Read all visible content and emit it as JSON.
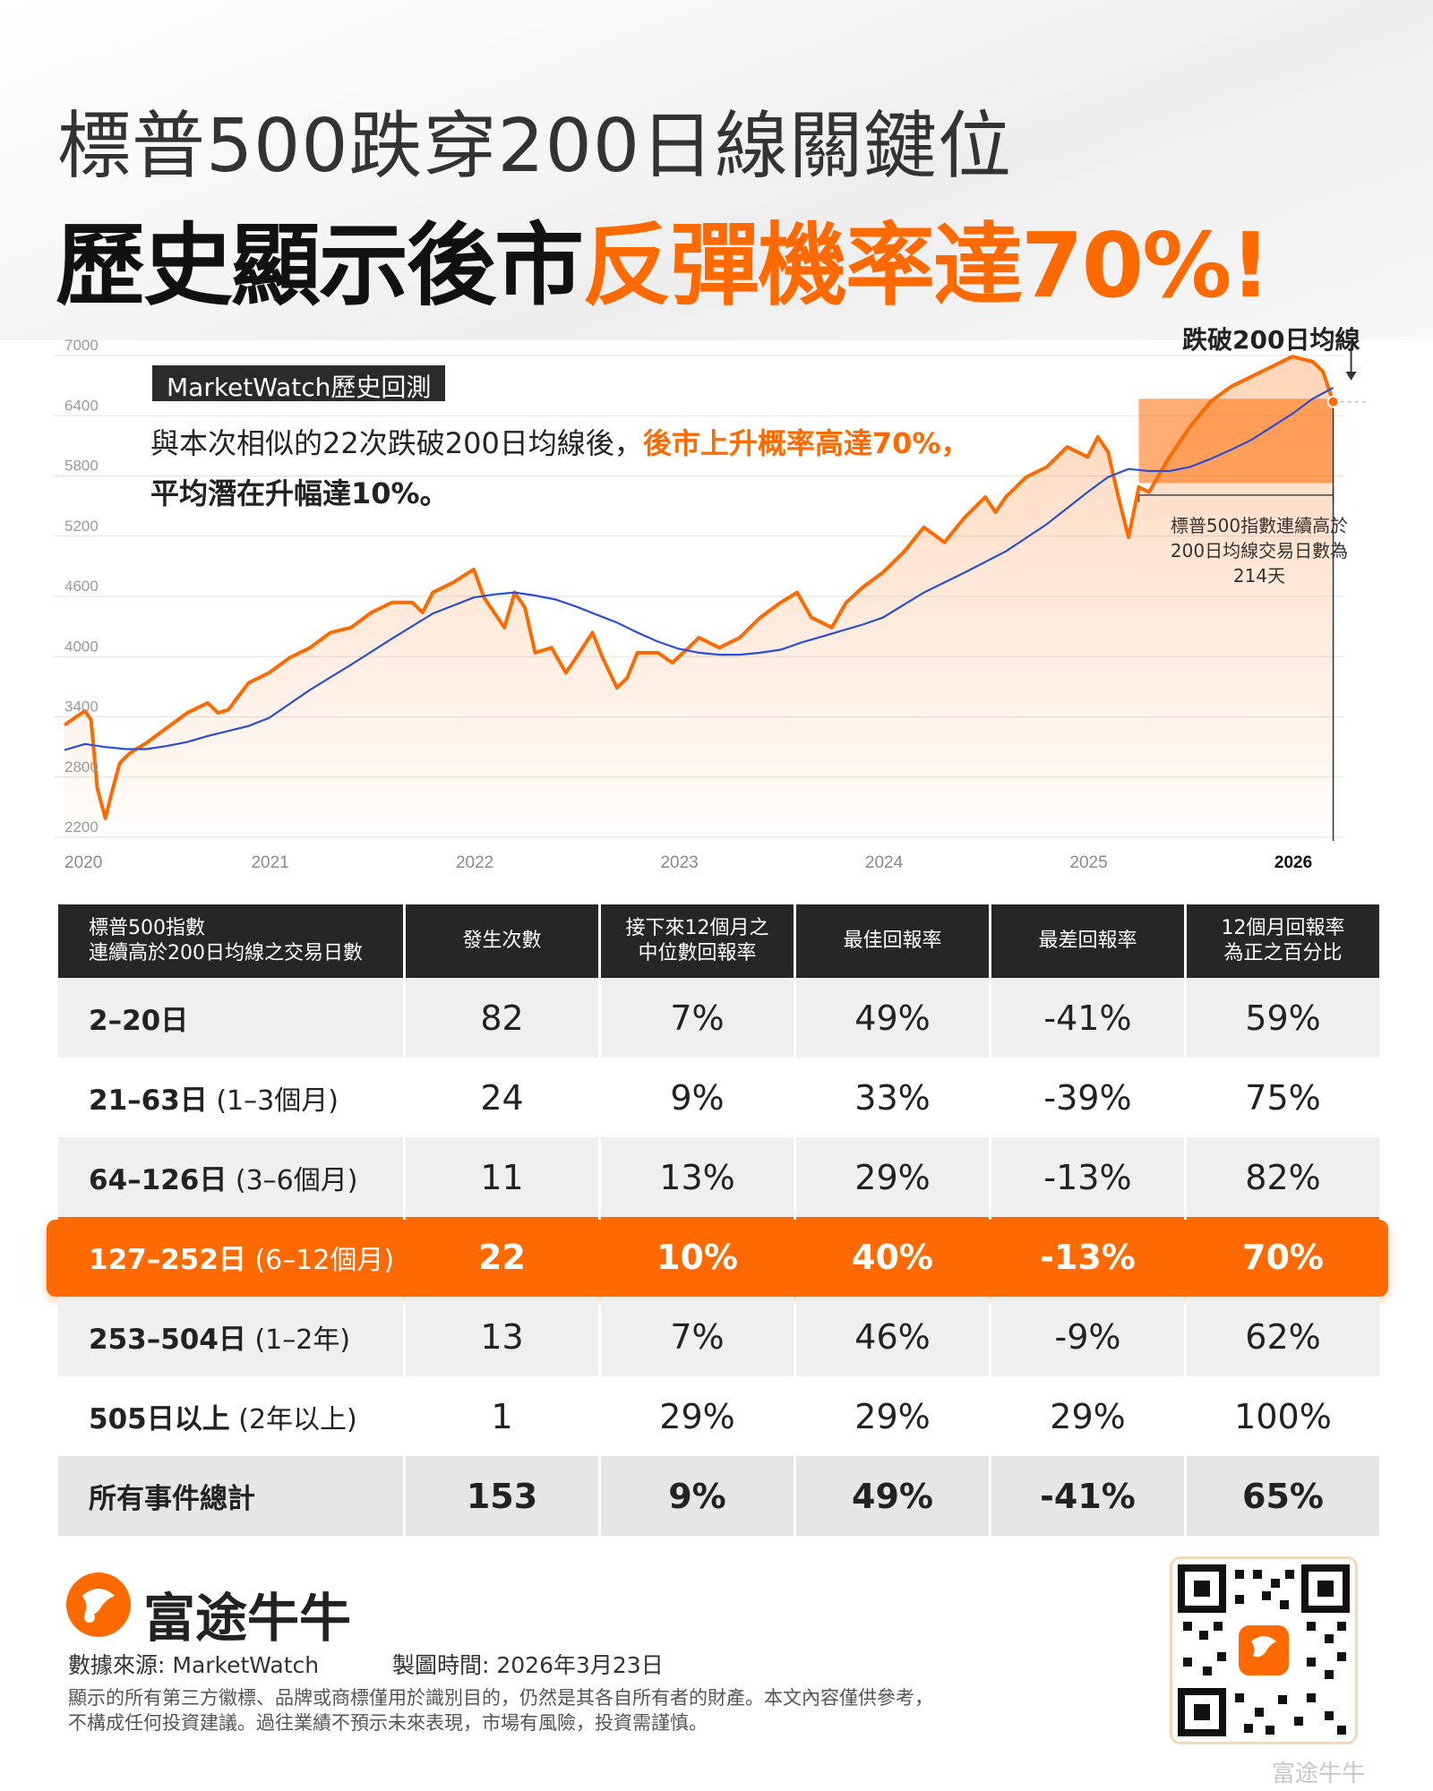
{
  "header": {
    "title_line1": "標普500跌穿200日線關鍵位",
    "title_line2_a": "歷史顯示後市",
    "title_line2_b": "反彈機率達70%!"
  },
  "colors": {
    "accent": "#ff6a00",
    "dark": "#262626",
    "ma_line": "#2a4fd6"
  },
  "annotations": {
    "source_badge": "MarketWatch歷史回測",
    "desc_a": "與本次相似的22次跌破200日均線後，",
    "desc_b": "後市上升概率高達70%，",
    "desc_c": "平均潛在升幅達10%。",
    "break_label": "跌破200日均線",
    "streak_note": "標普500指數連續高於200日均線交易日數為214天"
  },
  "chart_data": {
    "type": "line",
    "y_ticks": [
      2200,
      2800,
      3400,
      4000,
      4600,
      5200,
      5800,
      6400,
      7000
    ],
    "x_tick_labels": [
      "2020",
      "2021",
      "2022",
      "2023",
      "2024",
      "2025",
      "2026"
    ],
    "ylim": [
      2200,
      7000
    ],
    "xlim": [
      2020.0,
      2026.25
    ],
    "series": [
      {
        "x": [
          2020.0,
          2020.05,
          2020.1,
          2020.13,
          2020.16,
          2020.2,
          2020.23,
          2020.27,
          2020.32,
          2020.4,
          2020.5,
          2020.6,
          2020.7,
          2020.75,
          2020.8,
          2020.9,
          2021.0,
          2021.1,
          2021.2,
          2021.3,
          2021.4,
          2021.5,
          2021.6,
          2021.7,
          2021.75,
          2021.8,
          2021.9,
          2022.0,
          2022.05,
          2022.1,
          2022.15,
          2022.2,
          2022.25,
          2022.3,
          2022.38,
          2022.45,
          2022.5,
          2022.58,
          2022.63,
          2022.7,
          2022.75,
          2022.8,
          2022.9,
          2022.97,
          2023.05,
          2023.1,
          2023.2,
          2023.3,
          2023.4,
          2023.5,
          2023.58,
          2023.65,
          2023.75,
          2023.82,
          2023.9,
          2024.0,
          2024.1,
          2024.2,
          2024.3,
          2024.4,
          2024.5,
          2024.55,
          2024.6,
          2024.7,
          2024.8,
          2024.9,
          2025.0,
          2025.05,
          2025.1,
          2025.15,
          2025.2,
          2025.25,
          2025.3,
          2025.4,
          2025.5,
          2025.6,
          2025.7,
          2025.8,
          2025.9,
          2026.0,
          2026.1,
          2026.15,
          2026.2
        ],
        "y": [
          3230,
          3300,
          3370,
          3280,
          2600,
          2300,
          2550,
          2850,
          2950,
          3050,
          3200,
          3350,
          3450,
          3350,
          3380,
          3650,
          3750,
          3900,
          4000,
          4150,
          4200,
          4350,
          4450,
          4450,
          4350,
          4550,
          4650,
          4780,
          4500,
          4350,
          4200,
          4550,
          4400,
          3950,
          4000,
          3750,
          3900,
          4150,
          3900,
          3600,
          3700,
          3950,
          3950,
          3850,
          4000,
          4100,
          4000,
          4100,
          4300,
          4450,
          4550,
          4300,
          4200,
          4450,
          4600,
          4750,
          4950,
          5200,
          5050,
          5300,
          5500,
          5350,
          5500,
          5700,
          5800,
          6000,
          5900,
          6100,
          5950,
          5500,
          5100,
          5600,
          5550,
          5900,
          6200,
          6450,
          6600,
          6700,
          6800,
          6900,
          6850,
          6750,
          6450
        ],
        "color": "#ff6a00"
      },
      {
        "x": [
          2020.0,
          2020.1,
          2020.2,
          2020.3,
          2020.4,
          2020.5,
          2020.6,
          2020.7,
          2020.8,
          2020.9,
          2021.0,
          2021.2,
          2021.4,
          2021.6,
          2021.8,
          2022.0,
          2022.1,
          2022.2,
          2022.3,
          2022.4,
          2022.5,
          2022.6,
          2022.7,
          2022.8,
          2022.9,
          2023.0,
          2023.1,
          2023.2,
          2023.3,
          2023.4,
          2023.5,
          2023.6,
          2023.7,
          2023.8,
          2023.9,
          2024.0,
          2024.2,
          2024.4,
          2024.6,
          2024.8,
          2025.0,
          2025.1,
          2025.2,
          2025.3,
          2025.4,
          2025.5,
          2025.6,
          2025.7,
          2025.8,
          2025.9,
          2026.0,
          2026.1,
          2026.2
        ],
        "y": [
          2980,
          3040,
          3010,
          2990,
          2990,
          3020,
          3060,
          3120,
          3170,
          3220,
          3300,
          3580,
          3830,
          4090,
          4340,
          4500,
          4530,
          4550,
          4520,
          4480,
          4410,
          4330,
          4250,
          4150,
          4060,
          3990,
          3950,
          3930,
          3930,
          3950,
          3980,
          4050,
          4110,
          4170,
          4230,
          4300,
          4550,
          4750,
          4960,
          5230,
          5550,
          5700,
          5780,
          5760,
          5760,
          5800,
          5880,
          5970,
          6070,
          6200,
          6330,
          6480,
          6590
        ],
        "color": "#2a4fd6"
      }
    ],
    "break_point": {
      "x": 2026.2,
      "y": 6450
    },
    "table": {
      "columns": [
        "標普500指數\n連續高於200日均線之交易日數",
        "發生次數",
        "接下來12個月之\n中位數回報率",
        "最佳回報率",
        "最差回報率",
        "12個月回報率\n為正之百分比"
      ],
      "rows": [
        {
          "label": "2–20日",
          "sub": "",
          "cells": [
            "82",
            "7%",
            "49%",
            "-41%",
            "59%"
          ]
        },
        {
          "label": "21–63日",
          "sub": " (1–3個月)",
          "cells": [
            "24",
            "9%",
            "33%",
            "-39%",
            "75%"
          ]
        },
        {
          "label": "64–126日",
          "sub": " (3–6個月)",
          "cells": [
            "11",
            "13%",
            "29%",
            "-13%",
            "82%"
          ]
        },
        {
          "label": "127–252日",
          "sub": " (6–12個月)",
          "cells": [
            "22",
            "10%",
            "40%",
            "-13%",
            "70%"
          ]
        },
        {
          "label": "253–504日",
          "sub": " (1–2年)",
          "cells": [
            "13",
            "7%",
            "46%",
            "-9%",
            "62%"
          ]
        },
        {
          "label": "505日以上",
          "sub": " (2年以上)",
          "cells": [
            "1",
            "29%",
            "29%",
            "29%",
            "100%"
          ]
        },
        {
          "label": "所有事件總計",
          "sub": "",
          "cells": [
            "153",
            "9%",
            "49%",
            "-41%",
            "65%"
          ]
        }
      ]
    }
  },
  "footer": {
    "brand": "富途牛牛",
    "source": "數據來源: MarketWatch",
    "made": "製圖時間: 2026年3月23日",
    "disclaimer1": "顯示的所有第三方徽標、品牌或商標僅用於識別目的，仍然是其各自所有者的財產。本文內容僅供參考，",
    "disclaimer2": "不構成任何投資建議。過往業績不預示未來表現，市場有風險，投資需謹慎。",
    "watermark": "富途牛牛"
  }
}
